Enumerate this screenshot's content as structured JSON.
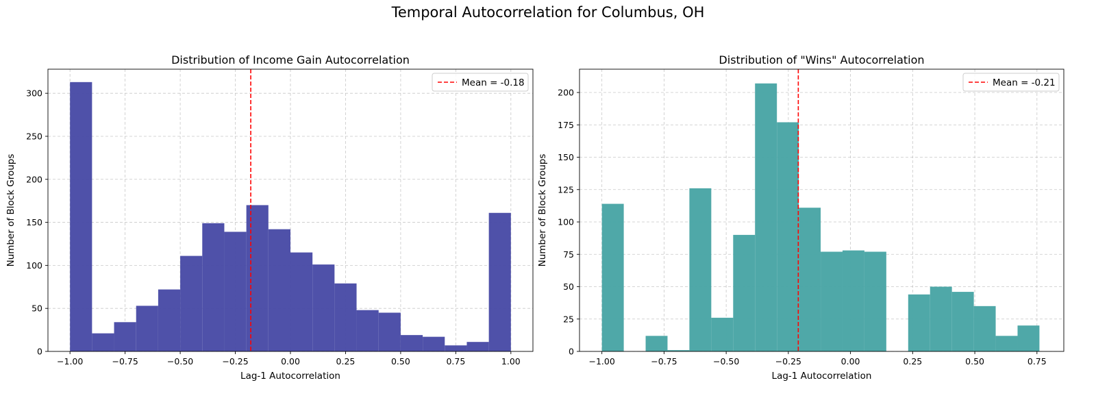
{
  "suptitle": "Temporal Autocorrelation for Columbus, OH",
  "chart_data": [
    {
      "type": "bar",
      "title": "Distribution of Income Gain Autocorrelation",
      "xlabel": "Lag-1 Autocorrelation",
      "ylabel": "Number of Block Groups",
      "xlim": [
        -1.1,
        1.1
      ],
      "ylim": [
        0,
        328
      ],
      "xticks": [
        -1.0,
        -0.75,
        -0.5,
        -0.25,
        0.0,
        0.25,
        0.5,
        0.75,
        1.0
      ],
      "xtick_labels": [
        "−1.00",
        "−0.75",
        "−0.50",
        "−0.25",
        "0.00",
        "0.25",
        "0.50",
        "0.75",
        "1.00"
      ],
      "yticks": [
        0,
        50,
        100,
        150,
        200,
        250,
        300
      ],
      "ytick_labels": [
        "0",
        "50",
        "100",
        "150",
        "200",
        "250",
        "300"
      ],
      "color": "#4b4ea7",
      "grid": true,
      "bin_edges": [
        -1.0,
        -0.9,
        -0.8,
        -0.7,
        -0.6,
        -0.5,
        -0.4,
        -0.3,
        -0.2,
        -0.1,
        0.0,
        0.1,
        0.2,
        0.3,
        0.4,
        0.5,
        0.6,
        0.7,
        0.8,
        0.9,
        1.0
      ],
      "values": [
        313,
        21,
        34,
        53,
        72,
        111,
        149,
        139,
        170,
        142,
        115,
        101,
        79,
        48,
        45,
        19,
        17,
        7,
        11,
        161
      ],
      "mean": {
        "value": -0.18,
        "label": "Mean = -0.18",
        "color": "#ff0000"
      },
      "legend_position": "upper right"
    },
    {
      "type": "bar",
      "title": "Distribution of \"Wins\" Autocorrelation",
      "xlabel": "Lag-1 Autocorrelation",
      "ylabel": "Number of Block Groups",
      "xlim": [
        -1.09,
        0.858
      ],
      "ylim": [
        0,
        218
      ],
      "xticks": [
        -1.0,
        -0.75,
        -0.5,
        -0.25,
        0.0,
        0.25,
        0.5,
        0.75
      ],
      "xtick_labels": [
        "−1.00",
        "−0.75",
        "−0.50",
        "−0.25",
        "0.00",
        "0.25",
        "0.50",
        "0.75"
      ],
      "yticks": [
        0,
        25,
        50,
        75,
        100,
        125,
        150,
        175,
        200
      ],
      "ytick_labels": [
        "0",
        "25",
        "50",
        "75",
        "100",
        "125",
        "150",
        "175",
        "200"
      ],
      "color": "#4ba6a6",
      "grid": true,
      "bin_edges": [
        -1.0,
        -0.912,
        -0.824,
        -0.736,
        -0.648,
        -0.56,
        -0.472,
        -0.384,
        -0.296,
        -0.208,
        -0.12,
        -0.032,
        0.056,
        0.144,
        0.232,
        0.32,
        0.408,
        0.496,
        0.584,
        0.672,
        0.76
      ],
      "values": [
        114,
        0,
        12,
        1,
        126,
        26,
        90,
        207,
        177,
        111,
        77,
        78,
        77,
        0,
        44,
        50,
        46,
        35,
        12,
        20
      ],
      "mean": {
        "value": -0.21,
        "label": "Mean = -0.21",
        "color": "#ff0000"
      },
      "legend_position": "upper right"
    }
  ]
}
